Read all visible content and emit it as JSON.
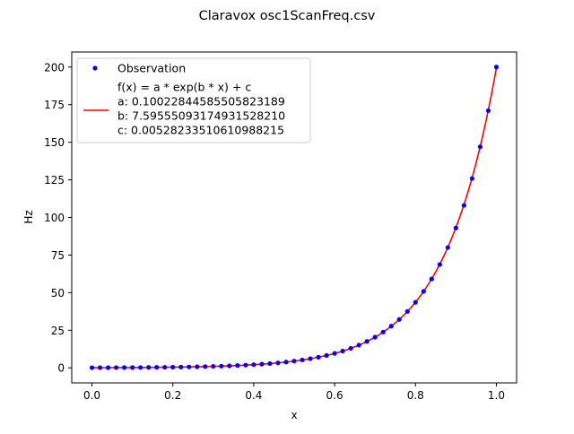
{
  "chart_data": {
    "type": "scatter",
    "title": "Claravox osc1ScanFreq.csv",
    "xlabel": "x",
    "ylabel": "Hz",
    "xlim": [
      -0.05,
      1.05
    ],
    "ylim": [
      -10,
      210
    ],
    "xticks": [
      "0.0",
      "0.2",
      "0.4",
      "0.6",
      "0.8",
      "1.0"
    ],
    "yticks": [
      "0",
      "25",
      "50",
      "75",
      "100",
      "125",
      "150",
      "175",
      "200"
    ],
    "legend_position": "upper-left",
    "series": [
      {
        "name": "Observation",
        "kind": "points",
        "color": "#0000ff",
        "x": [
          0.0,
          0.02,
          0.04,
          0.06,
          0.08,
          0.1,
          0.12,
          0.14,
          0.16,
          0.18,
          0.2,
          0.22,
          0.24,
          0.26,
          0.28,
          0.3,
          0.32,
          0.34,
          0.36,
          0.38,
          0.4,
          0.42,
          0.44,
          0.46,
          0.48,
          0.5,
          0.52,
          0.54,
          0.56,
          0.58,
          0.6,
          0.62,
          0.64,
          0.66,
          0.68,
          0.7,
          0.72,
          0.74,
          0.76,
          0.78,
          0.8,
          0.82,
          0.84,
          0.86,
          0.88,
          0.9,
          0.92,
          0.94,
          0.96,
          0.98,
          1.0
        ],
        "y": [
          0.1,
          0.12,
          0.14,
          0.16,
          0.19,
          0.21,
          0.25,
          0.29,
          0.34,
          0.39,
          0.46,
          0.53,
          0.62,
          0.72,
          0.84,
          0.98,
          1.14,
          1.33,
          1.55,
          1.81,
          2.1,
          2.44,
          2.85,
          3.31,
          3.86,
          4.49,
          5.23,
          6.08,
          7.08,
          8.24,
          9.58,
          11.15,
          12.98,
          15.1,
          17.57,
          20.4,
          23.8,
          27.7,
          32.2,
          37.5,
          43.6,
          50.8,
          59.1,
          68.7,
          80.0,
          93.0,
          108.0,
          125.9,
          147.0,
          171.0,
          200.0
        ]
      },
      {
        "name": "f(x) = a * exp(b * x) + c",
        "kind": "fit",
        "color": "#ff0000",
        "a": 0.10022844585505823,
        "b": 7.595550931749315,
        "c": 0.005282335106109882
      }
    ],
    "legend": {
      "entries": [
        {
          "label": "Observation",
          "color": "#0000ff"
        },
        {
          "color": "#ff0000",
          "lines": [
            "f(x) = a * exp(b * x) + c",
            "a: 0.10022844585505823189",
            "b: 7.5955509317493152821​0",
            "c: 0.00528233510610988215"
          ]
        }
      ]
    }
  }
}
